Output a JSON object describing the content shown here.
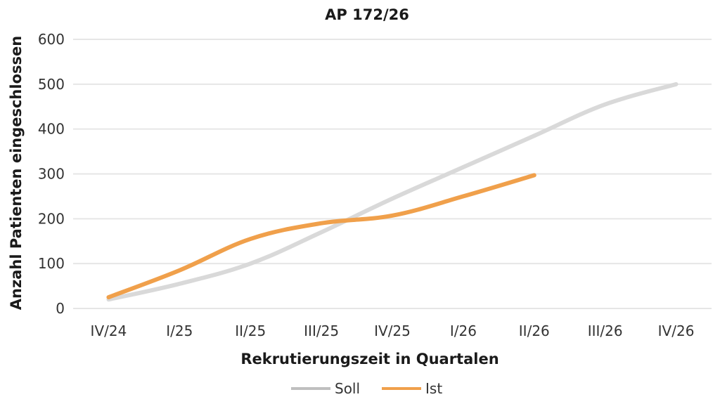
{
  "chart_data": {
    "type": "line",
    "title": "AP 172/26",
    "xlabel": "Rekrutierungszeit in Quartalen",
    "ylabel": "Anzahl Patienten eingeschlossen",
    "categories": [
      "IV/24",
      "I/25",
      "II/25",
      "III/25",
      "IV/25",
      "I/26",
      "II/26",
      "III/26",
      "IV/26"
    ],
    "y_ticks": [
      "0",
      "100",
      "200",
      "300",
      "400",
      "500",
      "600"
    ],
    "ylim": [
      0,
      600
    ],
    "grid": true,
    "legend_position": "bottom",
    "series": [
      {
        "name": "Soll",
        "color": "#d9d9d9",
        "values": [
          20,
          55,
          100,
          170,
          245,
          315,
          385,
          455,
          500
        ]
      },
      {
        "name": "Ist",
        "color": "#f0a04b",
        "values": [
          25,
          85,
          155,
          190,
          207,
          250,
          297,
          null,
          null
        ]
      }
    ]
  }
}
